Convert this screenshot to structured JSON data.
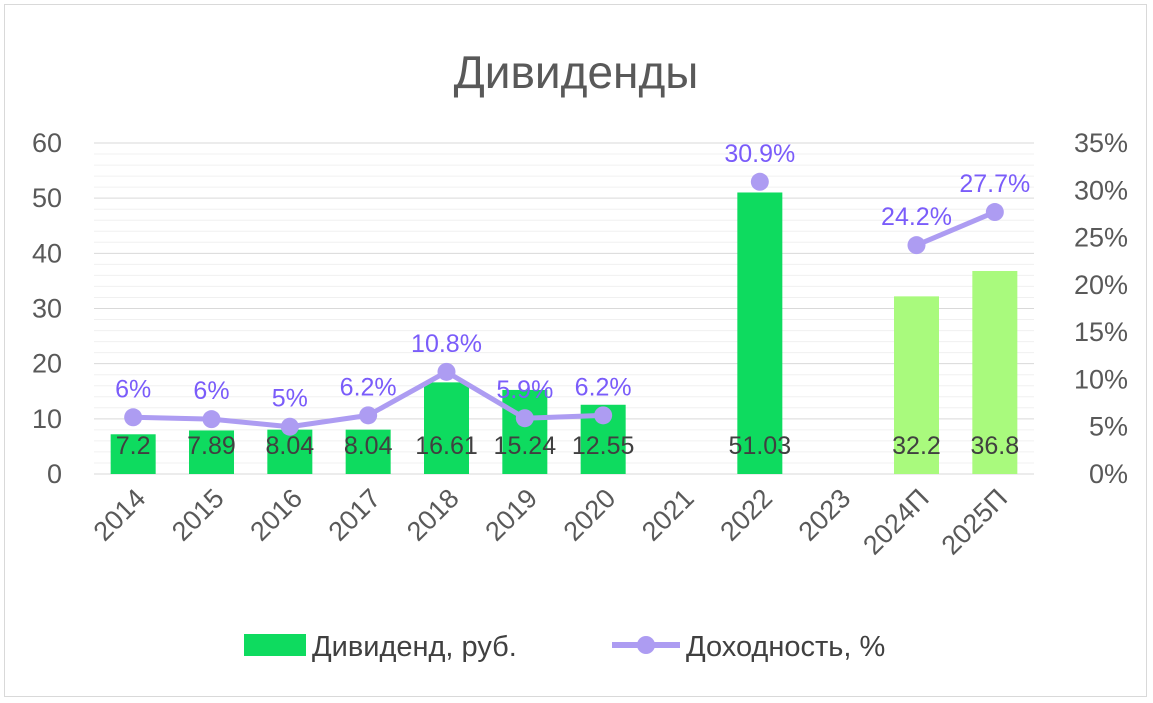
{
  "chart_data": {
    "type": "bar",
    "title": "Дивиденды",
    "categories": [
      "2014",
      "2015",
      "2016",
      "2017",
      "2018",
      "2019",
      "2020",
      "2021",
      "2022",
      "2023",
      "2024П",
      "2025П"
    ],
    "series": [
      {
        "name": "Дивиденд, руб.",
        "type": "bar",
        "axis": "left",
        "values": [
          7.2,
          7.89,
          8.04,
          8.04,
          16.61,
          15.24,
          12.55,
          null,
          51.03,
          null,
          32.2,
          36.8
        ],
        "labels": [
          "7.2",
          "7.89",
          "8.04",
          "8.04",
          "16.61",
          "15.24",
          "12.55",
          "",
          "51.03",
          "",
          "32.2",
          "36.8"
        ],
        "color": "#0EDB5F",
        "forecast_color": "#A9FA7D"
      },
      {
        "name": "Доходность, %",
        "type": "line",
        "axis": "right",
        "values": [
          6,
          5.8,
          5,
          6.2,
          10.8,
          5.9,
          6.2,
          null,
          30.9,
          null,
          24.2,
          27.7
        ],
        "labels": [
          "6%",
          "6%",
          "5%",
          "6.2%",
          "10.8%",
          "5.9%",
          "6.2%",
          "",
          "30.9%",
          "",
          "24.2%",
          "27.7%"
        ],
        "color": "#AD9CF2",
        "label_color": "#7A5CFA"
      }
    ],
    "y_left": {
      "min": 0,
      "max": 60,
      "ticks": [
        "0",
        "10",
        "20",
        "30",
        "40",
        "50",
        "60"
      ]
    },
    "y_right": {
      "min": 0,
      "max": 35,
      "ticks": [
        "0%",
        "5%",
        "10%",
        "15%",
        "20%",
        "25%",
        "30%",
        "35%"
      ]
    },
    "grid": true,
    "legend": "bottom"
  }
}
